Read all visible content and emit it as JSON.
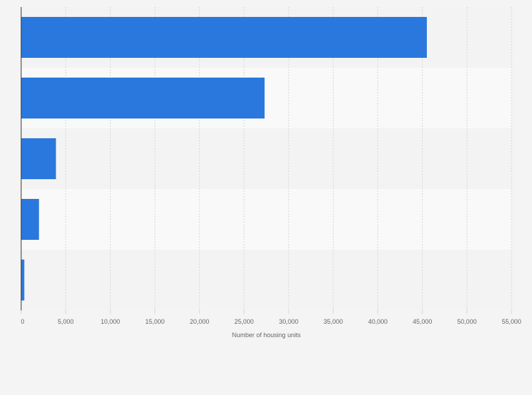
{
  "chart_data": {
    "type": "bar",
    "orientation": "horizontal",
    "title": "",
    "xlabel": "Number of housing units",
    "ylabel": "",
    "categories": [
      "",
      "",
      "",
      "",
      ""
    ],
    "values": [
      45500,
      27300,
      3900,
      2000,
      350
    ],
    "xlim": [
      0,
      55000
    ],
    "xticks": [
      0,
      5000,
      10000,
      15000,
      20000,
      25000,
      30000,
      35000,
      40000,
      45000,
      50000,
      55000
    ],
    "xtick_labels": [
      "0",
      "5,000",
      "10,000",
      "15,000",
      "20,000",
      "25,000",
      "30,000",
      "35,000",
      "40,000",
      "45,000",
      "50,000",
      "55,000"
    ],
    "grid": true,
    "legend": "none",
    "colors": {
      "bar": "#2a78de",
      "band_dark": "#f3f3f3",
      "band_light": "#f9f9f9",
      "grid": "#d6d6d6",
      "axis": "#333333",
      "text": "#666666",
      "background": "#f4f4f4"
    }
  }
}
